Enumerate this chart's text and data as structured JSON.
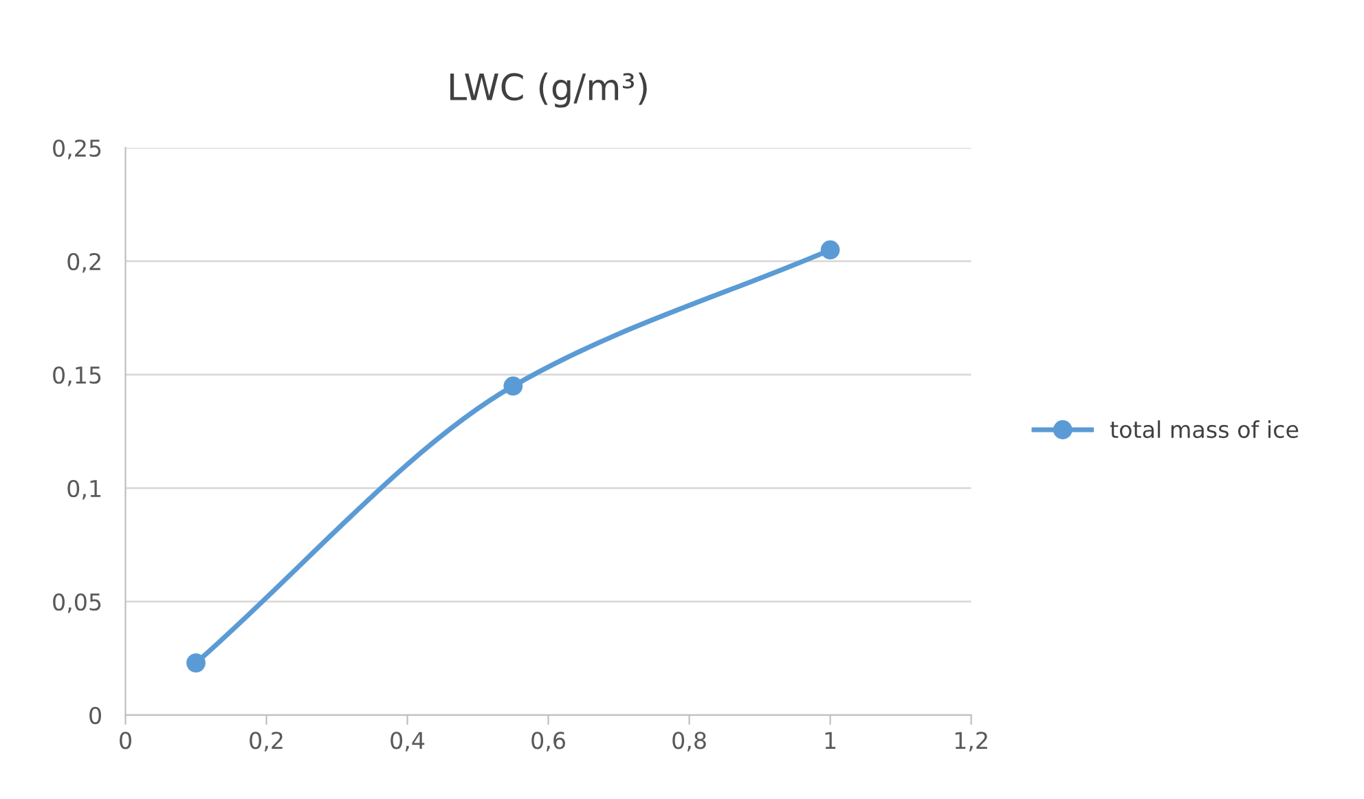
{
  "chart_data": {
    "type": "line",
    "title": "LWC (g/m³)",
    "x": [
      0.1,
      0.55,
      1
    ],
    "series": [
      {
        "name": "total mass of ice",
        "color": "#5b9bd5",
        "values": [
          0.023,
          0.145,
          0.205
        ]
      }
    ],
    "xlim": [
      0,
      1.2
    ],
    "xticks": [
      0,
      {
        "value": 0.2,
        "label": "0,2"
      },
      {
        "value": 0.4,
        "label": "0,4"
      },
      {
        "value": 0.6,
        "label": "0,6"
      },
      {
        "value": 0.8,
        "label": "0,8"
      },
      1,
      {
        "value": 1.2,
        "label": "1,2"
      }
    ],
    "ylim": [
      0,
      0.25
    ],
    "yticks": [
      0,
      {
        "value": 0.05,
        "label": "0,05"
      },
      {
        "value": 0.1,
        "label": "0,1"
      },
      {
        "value": 0.15,
        "label": "0,15"
      },
      {
        "value": 0.2,
        "label": "0,2"
      },
      {
        "value": 0.25,
        "label": "0,25"
      }
    ],
    "grid": "y",
    "legend": "right",
    "marker": "circle",
    "line_style": "solid"
  }
}
